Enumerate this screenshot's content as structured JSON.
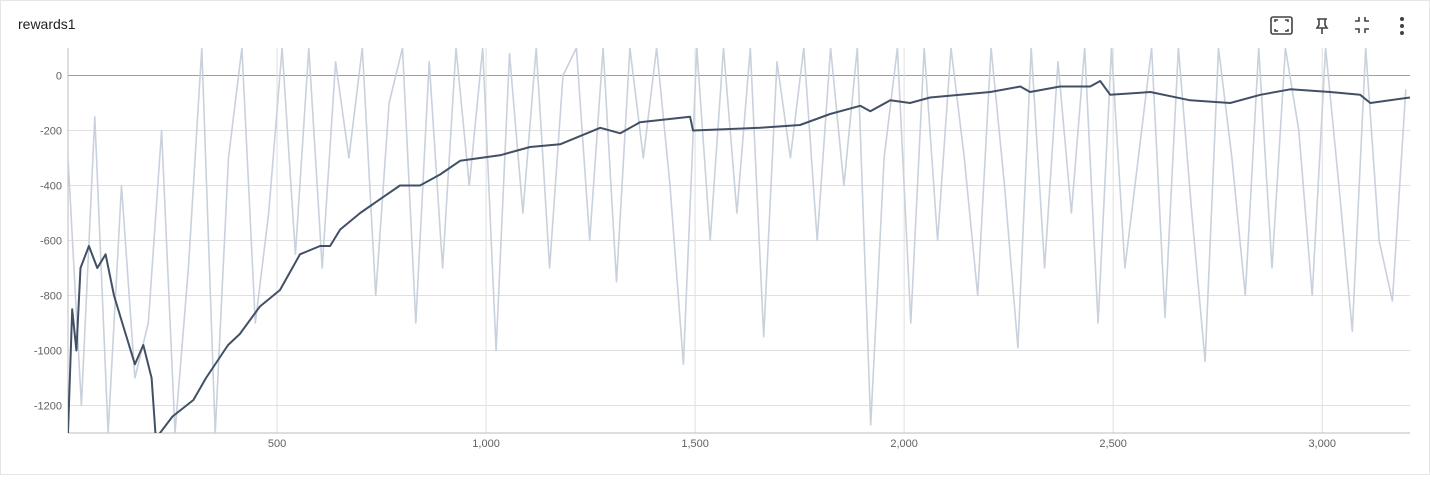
{
  "chart_data": {
    "type": "line",
    "title": "rewards1",
    "xlim": [
      0,
      3210
    ],
    "ylim": [
      -1300,
      100
    ],
    "xticks": [
      500,
      {
        "value": 1000,
        "label": "1,000"
      },
      {
        "value": 1500,
        "label": "1,500"
      },
      {
        "value": 2000,
        "label": "2,000"
      },
      {
        "value": 2500,
        "label": "2,500"
      },
      {
        "value": 3000,
        "label": "3,000"
      }
    ],
    "yticks": [
      -1200,
      -1000,
      -800,
      -600,
      -400,
      -200,
      0
    ],
    "grid": true,
    "series": [
      {
        "color": "#c9d1dc",
        "x": [
          0,
          32,
          64,
          96,
          128,
          160,
          192,
          224,
          256,
          288,
          320,
          352,
          384,
          416,
          448,
          480,
          512,
          544,
          576,
          608,
          640,
          672,
          704,
          736,
          768,
          800,
          832,
          864,
          896,
          928,
          960,
          992,
          1024,
          1056,
          1088,
          1120,
          1152,
          1184,
          1216,
          1248,
          1280,
          1312,
          1344,
          1376,
          1408,
          1440,
          1472,
          1504,
          1536,
          1568,
          1600,
          1632,
          1664,
          1696,
          1728,
          1760,
          1792,
          1824,
          1856,
          1888,
          1920,
          1952,
          1984,
          2016,
          2048,
          2080,
          2112,
          2144,
          2176,
          2208,
          2240,
          2272,
          2304,
          2336,
          2368,
          2400,
          2432,
          2464,
          2496,
          2528,
          2560,
          2592,
          2624,
          2656,
          2688,
          2720,
          2752,
          2784,
          2816,
          2848,
          2880,
          2912,
          2944,
          2976,
          3008,
          3040,
          3072,
          3104,
          3136,
          3168,
          3200
        ],
        "values": [
          -300,
          -1200,
          -150,
          -1300,
          -400,
          -1100,
          -900,
          -200,
          -1300,
          -700,
          100,
          -1300,
          -300,
          100,
          -900,
          -500,
          100,
          -650,
          100,
          -700,
          50,
          -300,
          100,
          -800,
          -100,
          100,
          -900,
          50,
          -700,
          100,
          -400,
          100,
          -1000,
          80,
          -500,
          100,
          -700,
          0,
          100,
          -600,
          100,
          -750,
          100,
          -300,
          100,
          -400,
          -1050,
          100,
          -600,
          100,
          -500,
          100,
          -950,
          50,
          -300,
          100,
          -600,
          100,
          -400,
          100,
          -1270,
          -300,
          100,
          -900,
          100,
          -600,
          100,
          -300,
          -800,
          100,
          -400,
          -990,
          100,
          -700,
          50,
          -500,
          100,
          -900,
          100,
          -700,
          -300,
          100,
          -880,
          100,
          -500,
          -1040,
          100,
          -300,
          -800,
          100,
          -700,
          100,
          -200,
          -800,
          100,
          -400,
          -930,
          100,
          -600,
          -820,
          -50
        ]
      },
      {
        "color": "#425066",
        "x": [
          0,
          10,
          20,
          30,
          50,
          70,
          90,
          110,
          130,
          160,
          180,
          200,
          210,
          250,
          300,
          330,
          383,
          411,
          459,
          507,
          555,
          603,
          627,
          651,
          699,
          746,
          794,
          842,
          890,
          938,
          1033,
          1105,
          1177,
          1273,
          1321,
          1368,
          1488,
          1495,
          1656,
          1751,
          1823,
          1895,
          1919,
          1967,
          2014,
          2062,
          2134,
          2206,
          2278,
          2301,
          2373,
          2445,
          2469,
          2493,
          2589,
          2684,
          2780,
          2852,
          2924,
          3019,
          3091,
          3115,
          3210
        ],
        "values": [
          -1300,
          -850,
          -1000,
          -700,
          -620,
          -700,
          -650,
          -800,
          -900,
          -1050,
          -980,
          -1100,
          -1320,
          -1240,
          -1180,
          -1100,
          -980,
          -940,
          -840,
          -780,
          -650,
          -620,
          -620,
          -560,
          -500,
          -450,
          -400,
          -400,
          -360,
          -310,
          -290,
          -260,
          -250,
          -190,
          -210,
          -170,
          -150,
          -200,
          -190,
          -180,
          -140,
          -110,
          -130,
          -90,
          -100,
          -80,
          -70,
          -60,
          -40,
          -60,
          -40,
          -40,
          -20,
          -70,
          -60,
          -90,
          -100,
          -70,
          -50,
          -60,
          -70,
          -100,
          -80
        ]
      }
    ]
  }
}
